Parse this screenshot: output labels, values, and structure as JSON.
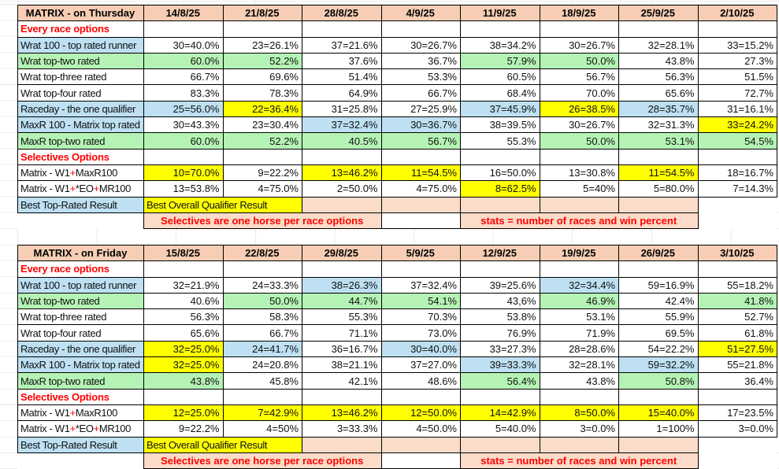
{
  "colors": {
    "header_pink": "#F7CEB5",
    "note_pink": "#FADCC9",
    "blue": "#BEE0F2",
    "green": "#B5F3B5",
    "yellow": "#FFFF00",
    "red": "#FF0000"
  },
  "tables": [
    {
      "name": "matrix-table-thursday",
      "dom_id": "table-thursday",
      "title": "MATRIX - on Thursday",
      "dates": [
        "14/8/25",
        "21/8/25",
        "28/8/25",
        "4/9/25",
        "11/9/25",
        "18/9/25",
        "25/9/25",
        "2/10/25"
      ],
      "rows": [
        {
          "type": "section",
          "label": "Every race options"
        },
        {
          "type": "data",
          "label": "Wrat 100 - top rated runner",
          "label_fill": "b",
          "cells": [
            "30=40.0%",
            "23=26.1%",
            "37=21.6%",
            "30=26.7%",
            "38=34.2%",
            "30=26.7%",
            "32=28.1%",
            "33=15.2%"
          ],
          "fills": "wwwwwwww"
        },
        {
          "type": "data",
          "label": "Wrat top-two rated",
          "label_fill": "g",
          "cells": [
            "60.0%",
            "52.2%",
            "37.6%",
            "36.7%",
            "57.9%",
            "50.0%",
            "43.8%",
            "27.3%"
          ],
          "fills": "ggwwggww"
        },
        {
          "type": "data",
          "label": "Wrat top-three rated",
          "label_fill": "w",
          "cells": [
            "66.7%",
            "69.6%",
            "51.4%",
            "53.3%",
            "60.5%",
            "56.7%",
            "56.3%",
            "51.5%"
          ],
          "fills": "wwwwwwww"
        },
        {
          "type": "data",
          "label": "Wrat top-four rated",
          "label_fill": "w",
          "cells": [
            "83.3%",
            "78.3%",
            "64.9%",
            "66.7%",
            "68.4%",
            "70.0%",
            "65.6%",
            "72.7%"
          ],
          "fills": "wwwwwwww"
        },
        {
          "type": "data",
          "label": "Raceday - the one qualifier",
          "label_fill": "b",
          "cells": [
            "25=56.0%",
            "22=36.4%",
            "31=25.8%",
            "27=25.9%",
            "37=45.9%",
            "26=38.5%",
            "28=35.7%",
            "31=16.1%"
          ],
          "fills": "bywwbybw"
        },
        {
          "type": "data",
          "label": "MaxR 100 - Matrix top rated",
          "label_fill": "b",
          "cells": [
            "30=43.3%",
            "23=30.4%",
            "37=32.4%",
            "30=36.7%",
            "38=39.5%",
            "30=26.7%",
            "32=31.3%",
            "33=24.2%"
          ],
          "fills": "wwbbwwwy"
        },
        {
          "type": "data",
          "label": "MaxR top-two rated",
          "label_fill": "g",
          "cells": [
            "60.0%",
            "52.2%",
            "40.5%",
            "56.7%",
            "55.3%",
            "50.0%",
            "53.1%",
            "54.5%"
          ],
          "fills": "ggggwggg"
        },
        {
          "type": "section",
          "label": "Selectives Options"
        },
        {
          "type": "data",
          "label": "Matrix - W1+MaxR100",
          "label_fill": "w",
          "cells": [
            "10=70.0%",
            "9=22.2%",
            "13=46.2%",
            "11=54.5%",
            "16=50.0%",
            "13=30.8%",
            "11=54.5%",
            "18=16.7%"
          ],
          "fills": "ywyywwyw"
        },
        {
          "type": "data",
          "label": "Matrix - W1+*EO+MR100",
          "label_fill": "w",
          "cells": [
            "13=53.8%",
            "4=75.0%",
            "2=50.0%",
            "4=75.0%",
            "8=62.5%",
            "5=40%",
            "5=80.0%",
            "7=14.3%"
          ],
          "fills": "wwwwywww"
        }
      ],
      "best_row": {
        "label": "Best Top-Rated Result",
        "overall": "Best Overall Qualifier Result"
      },
      "note_row": {
        "left": "Selectives are one horse per race options",
        "right": "stats = number of races and win percent"
      }
    },
    {
      "name": "matrix-table-friday",
      "dom_id": "table-friday",
      "title": "MATRIX - on Friday",
      "dates": [
        "15/8/25",
        "22/8/25",
        "29/8/25",
        "5/9/25",
        "12/9/25",
        "19/9/25",
        "26/9/25",
        "3/10/25"
      ],
      "rows": [
        {
          "type": "section",
          "label": "Every race options"
        },
        {
          "type": "data",
          "label": "Wrat 100 - top rated runner",
          "label_fill": "b",
          "cells": [
            "32=21.9%",
            "24=33.3%",
            "38=26.3%",
            "37=32.4%",
            "39=25.6%",
            "32=34.4%",
            "59=16.9%",
            "55=18.2%"
          ],
          "fills": "wwbwwbww"
        },
        {
          "type": "data",
          "label": "Wrat top-two rated",
          "label_fill": "g",
          "cells": [
            "40.6%",
            "50.0%",
            "44.7%",
            "54.1%",
            "43,6%",
            "46.9%",
            "42.4%",
            "41.8%"
          ],
          "fills": "wgggwgwg"
        },
        {
          "type": "data",
          "label": "Wrat top-three rated",
          "label_fill": "w",
          "cells": [
            "56.3%",
            "58.3%",
            "55.3%",
            "70.3%",
            "53.8%",
            "53.1%",
            "55.9%",
            "52.7%"
          ],
          "fills": "wwwwwwww"
        },
        {
          "type": "data",
          "label": "Wrat top-four rated",
          "label_fill": "w",
          "cells": [
            "65.6%",
            "66.7%",
            "71.1%",
            "73.0%",
            "76.9%",
            "71.9%",
            "69.5%",
            "61.8%"
          ],
          "fills": "wwwwwwww"
        },
        {
          "type": "data",
          "label": "Raceday - the one qualifier",
          "label_fill": "b",
          "cells": [
            "32=25.0%",
            "24=41.7%",
            "36=16.7%",
            "30=40.0%",
            "33=27.3%",
            "28=28.6%",
            "54=22.2%",
            "51=27.5%"
          ],
          "fills": "ybwbwwwy"
        },
        {
          "type": "data",
          "label": "MaxR 100 - Matrix top rated",
          "label_fill": "b",
          "cells": [
            "32=25.0%",
            "24=20.8%",
            "38=21.1%",
            "37=27.0%",
            "39=33.3%",
            "32=28.1%",
            "59=32.2%",
            "55=21.8%"
          ],
          "fills": "ywwwbwbw"
        },
        {
          "type": "data",
          "label": "MaxR top-two rated",
          "label_fill": "g",
          "cells": [
            "43.8%",
            "45.8%",
            "42.1%",
            "48.6%",
            "56.4%",
            "43.8%",
            "50.8%",
            "36.4%"
          ],
          "fills": "gwwwgwgw"
        },
        {
          "type": "section",
          "label": "Selectives Options"
        },
        {
          "type": "data",
          "label": "Matrix - W1+MaxR100",
          "label_fill": "w",
          "cells": [
            "12=25.0%",
            "7=42.9%",
            "13=46.2%",
            "12=50.0%",
            "14=42.9%",
            "8=50.0%",
            "15=40.0%",
            "17=23.5%"
          ],
          "fills": "yyyyyyyw"
        },
        {
          "type": "data",
          "label": "Matrix - W1+*EO+MR100",
          "label_fill": "w",
          "cells": [
            "9=22.2%",
            "4=50%",
            "3=33.3%",
            "4=50.0%",
            "5=40.0%",
            "3=0.0%",
            "1=100%",
            "3=0.0%"
          ],
          "fills": "wwwwwwww"
        }
      ],
      "best_row": {
        "label": "Best Top-Rated Result",
        "overall": "Best Overall Qualifier Result"
      },
      "note_row": {
        "left": "Selectives are one horse per race options",
        "right": "stats = number of races and win percent"
      }
    }
  ]
}
